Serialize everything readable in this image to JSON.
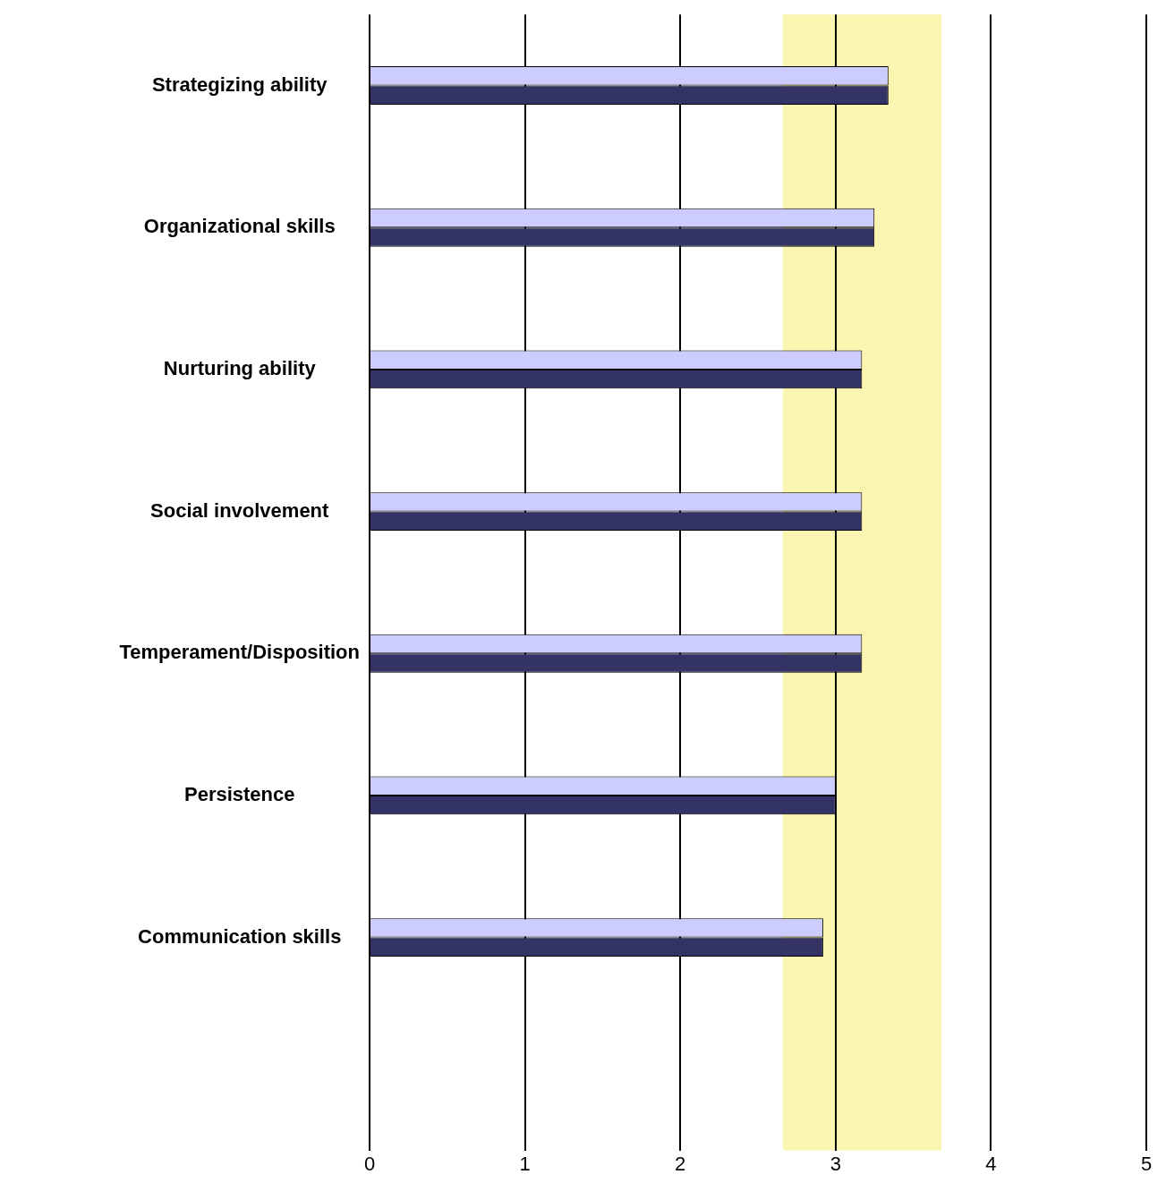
{
  "chart_data": {
    "type": "bar",
    "orientation": "horizontal",
    "categories": [
      "Strategizing ability",
      "Organizational skills",
      "Nurturing ability",
      "Social involvement",
      "Temperament/Disposition",
      "Persistence",
      "Communication skills",
      null
    ],
    "series": [
      {
        "color": "#ccccff",
        "values": [
          3.34,
          3.25,
          3.17,
          3.17,
          3.17,
          3.0,
          2.92,
          null
        ]
      },
      {
        "color": "#333366",
        "values": [
          3.34,
          3.25,
          3.17,
          3.17,
          3.17,
          3.0,
          2.92,
          null
        ]
      }
    ],
    "xlim": [
      0,
      5
    ],
    "xticks": [
      0,
      1,
      2,
      3,
      4,
      5
    ],
    "grid": "x",
    "legend": false,
    "bands": [
      {
        "axis": "x",
        "from": 2.66,
        "to": 3.68,
        "color": "#faf5b0"
      }
    ]
  }
}
